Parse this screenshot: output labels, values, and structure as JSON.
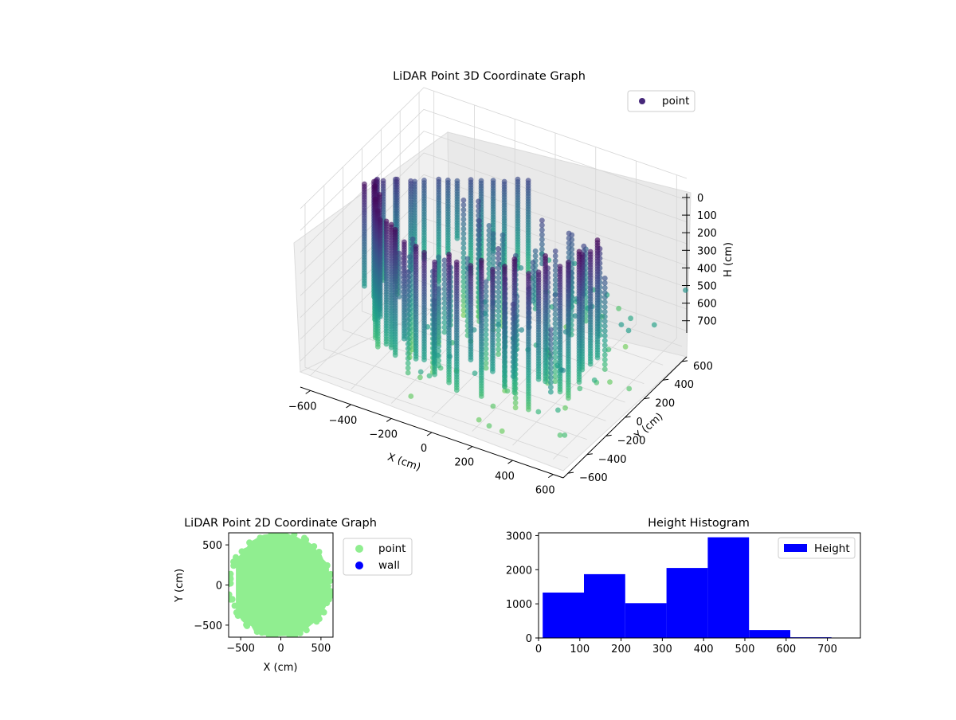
{
  "chart_data": [
    {
      "type": "scatter",
      "projection": "3d",
      "title": "LiDAR Point 3D Coordinate Graph",
      "xlabel": "X (cm)",
      "ylabel": "Y (cm)",
      "zlabel": "H (cm)",
      "xticks": [
        "−600",
        "−400",
        "−200",
        "0",
        "200",
        "400",
        "600"
      ],
      "yticks": [
        "−600",
        "−400",
        "−200",
        "0",
        "200",
        "400",
        "600"
      ],
      "zticks": [
        "0",
        "100",
        "200",
        "300",
        "400",
        "500",
        "600",
        "700"
      ],
      "xlim": [
        -650,
        650
      ],
      "ylim": [
        -650,
        650
      ],
      "zlim": [
        750,
        0
      ],
      "z_axis_inverted": true,
      "grid": true,
      "colormap": "viridis",
      "legend": {
        "placement": "upper-right",
        "entries": [
          {
            "name": "point",
            "color": "#46287a"
          }
        ]
      },
      "series": [
        {
          "name": "point",
          "shape": "ring of vertical columns around the sensor",
          "ring_radius_cm": 560,
          "height_range_cm": [
            0,
            750
          ],
          "columns": 48
        }
      ]
    },
    {
      "type": "scatter",
      "title": "LiDAR Point 2D Coordinate Graph",
      "xlabel": "X (cm)",
      "ylabel": "Y (cm)",
      "xticks": [
        "−500",
        "0",
        "500"
      ],
      "yticks": [
        "500",
        "0",
        "−500"
      ],
      "xlim": [
        -650,
        650
      ],
      "ylim": [
        -650,
        650
      ],
      "legend": {
        "placement": "right-outside",
        "entries": [
          {
            "name": "point",
            "color": "#90ee90"
          },
          {
            "name": "wall",
            "color": "#0000ff"
          }
        ]
      },
      "series": [
        {
          "name": "point",
          "color": "#90ee90",
          "extent": {
            "x": [
              -560,
              620
            ],
            "y": [
              -650,
              650
            ]
          }
        },
        {
          "name": "wall",
          "color": "#0000ff",
          "points": []
        }
      ]
    },
    {
      "type": "bar",
      "subtype": "histogram",
      "title": "Height Histogram",
      "xticks": [
        "0",
        "100",
        "200",
        "300",
        "400",
        "500",
        "600",
        "700"
      ],
      "yticks": [
        "0",
        "1000",
        "2000",
        "3000"
      ],
      "xlim": [
        0,
        780
      ],
      "ylim": [
        0,
        3080
      ],
      "color": "#0000ff",
      "legend": {
        "placement": "upper-right",
        "entries": [
          {
            "name": "Height",
            "color": "#0000ff"
          }
        ]
      },
      "bins": [
        {
          "x0": 10,
          "x1": 110,
          "value": 1330
        },
        {
          "x0": 110,
          "x1": 210,
          "value": 1870
        },
        {
          "x0": 210,
          "x1": 310,
          "value": 1020
        },
        {
          "x0": 310,
          "x1": 410,
          "value": 2050
        },
        {
          "x0": 410,
          "x1": 510,
          "value": 2950
        },
        {
          "x0": 510,
          "x1": 610,
          "value": 230
        },
        {
          "x0": 610,
          "x1": 710,
          "value": 20
        }
      ]
    }
  ]
}
